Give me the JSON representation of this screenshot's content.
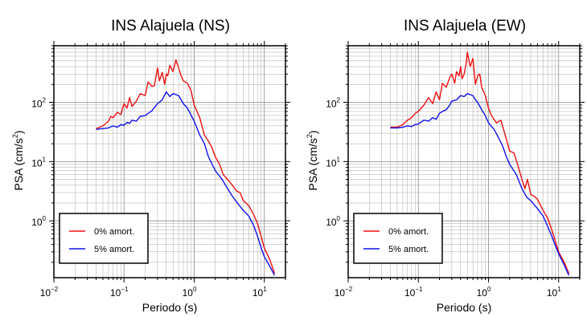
{
  "chart_data": [
    {
      "type": "line",
      "title": "INS Alajuela (NS)",
      "xlabel": "Periodo (s)",
      "ylabel_main": "PSA (cm/s",
      "ylabel_sup": "2",
      "ylabel_close": ")",
      "x_scale": "log",
      "y_scale": "log",
      "xlim": [
        0.01,
        20
      ],
      "ylim": [
        0.11,
        900
      ],
      "grid": true,
      "x_ticks": [
        {
          "base": "10",
          "exp": "−2"
        },
        {
          "base": "10",
          "exp": "−1"
        },
        {
          "base": "10",
          "exp": "0"
        },
        {
          "base": "10",
          "exp": "1"
        }
      ],
      "y_ticks": [
        {
          "base": "10",
          "exp": "0"
        },
        {
          "base": "10",
          "exp": "1"
        },
        {
          "base": "10",
          "exp": "2"
        }
      ],
      "legend_position": "bottom-left",
      "series": [
        {
          "name": "0% amort.",
          "color": "#ee1111",
          "x": [
            0.04,
            0.05,
            0.06,
            0.065,
            0.07,
            0.08,
            0.09,
            0.1,
            0.11,
            0.12,
            0.13,
            0.15,
            0.17,
            0.2,
            0.22,
            0.25,
            0.27,
            0.3,
            0.32,
            0.35,
            0.38,
            0.4,
            0.42,
            0.45,
            0.5,
            0.55,
            0.6,
            0.65,
            0.7,
            0.8,
            0.9,
            1.0,
            1.2,
            1.4,
            1.6,
            1.8,
            2.0,
            2.3,
            2.6,
            3.0,
            3.5,
            4.0,
            4.5,
            5.0,
            6.0,
            7.0,
            8.0,
            9.0,
            10.0,
            12.0,
            14.0
          ],
          "y": [
            36,
            40,
            48,
            58,
            55,
            68,
            62,
            95,
            80,
            120,
            85,
            105,
            140,
            130,
            220,
            185,
            190,
            380,
            230,
            320,
            200,
            300,
            280,
            420,
            330,
            520,
            380,
            280,
            230,
            210,
            160,
            90,
            55,
            28,
            22,
            17,
            12,
            9,
            6,
            5,
            4,
            3.2,
            3.0,
            2.2,
            1.8,
            1.3,
            0.9,
            0.55,
            0.35,
            0.22,
            0.13
          ]
        },
        {
          "name": "5% amort.",
          "color": "#1111ee",
          "x": [
            0.04,
            0.05,
            0.06,
            0.07,
            0.08,
            0.09,
            0.1,
            0.11,
            0.12,
            0.13,
            0.15,
            0.17,
            0.2,
            0.22,
            0.25,
            0.3,
            0.35,
            0.4,
            0.45,
            0.5,
            0.55,
            0.6,
            0.7,
            0.8,
            1.0,
            1.2,
            1.4,
            1.6,
            1.8,
            2.0,
            2.5,
            3.0,
            3.5,
            4.0,
            5.0,
            6.0,
            7.0,
            8.0,
            9.0,
            10.0,
            12.0,
            14.0
          ],
          "y": [
            35,
            36,
            37,
            40,
            38,
            42,
            41,
            46,
            44,
            50,
            48,
            58,
            60,
            65,
            72,
            95,
            110,
            150,
            125,
            140,
            135,
            130,
            95,
            80,
            48,
            28,
            20,
            12,
            9,
            7,
            5,
            3.5,
            2.6,
            2.1,
            1.5,
            1.2,
            0.85,
            0.55,
            0.35,
            0.25,
            0.17,
            0.12
          ]
        }
      ]
    },
    {
      "type": "line",
      "title": "INS Alajuela (EW)",
      "xlabel": "Periodo (s)",
      "ylabel_main": "PSA (cm/s",
      "ylabel_sup": "2",
      "ylabel_close": ")",
      "x_scale": "log",
      "y_scale": "log",
      "xlim": [
        0.01,
        20
      ],
      "ylim": [
        0.11,
        900
      ],
      "grid": true,
      "x_ticks": [
        {
          "base": "10",
          "exp": "−2"
        },
        {
          "base": "10",
          "exp": "−1"
        },
        {
          "base": "10",
          "exp": "0"
        },
        {
          "base": "10",
          "exp": "1"
        }
      ],
      "y_ticks": [
        {
          "base": "10",
          "exp": "0"
        },
        {
          "base": "10",
          "exp": "1"
        },
        {
          "base": "10",
          "exp": "2"
        }
      ],
      "legend_position": "bottom-left",
      "series": [
        {
          "name": "0% amort.",
          "color": "#ee1111",
          "x": [
            0.04,
            0.05,
            0.06,
            0.07,
            0.08,
            0.09,
            0.1,
            0.11,
            0.12,
            0.14,
            0.16,
            0.18,
            0.2,
            0.22,
            0.25,
            0.28,
            0.3,
            0.33,
            0.35,
            0.38,
            0.4,
            0.42,
            0.45,
            0.48,
            0.5,
            0.55,
            0.6,
            0.65,
            0.7,
            0.75,
            0.8,
            0.9,
            1.0,
            1.1,
            1.3,
            1.5,
            1.7,
            2.0,
            2.3,
            2.6,
            3.0,
            3.3,
            3.6,
            4.0,
            4.5,
            5.0,
            6.0,
            7.0,
            8.0,
            9.0,
            10.0,
            12.0,
            14.0
          ],
          "y": [
            38,
            38,
            42,
            50,
            55,
            65,
            70,
            80,
            90,
            120,
            95,
            150,
            110,
            210,
            180,
            260,
            300,
            210,
            330,
            280,
            400,
            250,
            300,
            450,
            700,
            400,
            550,
            200,
            280,
            300,
            180,
            130,
            80,
            60,
            45,
            50,
            30,
            15,
            14,
            9,
            5,
            3.5,
            5.0,
            2.8,
            2.6,
            2.3,
            1.5,
            1.1,
            0.7,
            0.45,
            0.3,
            0.2,
            0.13
          ]
        },
        {
          "name": "5% amort.",
          "color": "#1111ee",
          "x": [
            0.04,
            0.05,
            0.06,
            0.07,
            0.08,
            0.09,
            0.1,
            0.12,
            0.14,
            0.16,
            0.18,
            0.2,
            0.22,
            0.25,
            0.28,
            0.3,
            0.35,
            0.4,
            0.45,
            0.5,
            0.55,
            0.6,
            0.65,
            0.7,
            0.8,
            0.9,
            1.0,
            1.2,
            1.4,
            1.6,
            1.8,
            2.0,
            2.5,
            3.0,
            3.5,
            4.0,
            5.0,
            6.0,
            7.0,
            8.0,
            9.0,
            10.0,
            12.0,
            14.0
          ],
          "y": [
            37,
            37,
            38,
            40,
            39,
            42,
            43,
            50,
            48,
            55,
            52,
            65,
            70,
            75,
            90,
            105,
            110,
            130,
            125,
            140,
            135,
            130,
            110,
            100,
            75,
            60,
            45,
            35,
            25,
            18,
            12,
            9,
            6,
            3.5,
            2.5,
            2.2,
            1.6,
            1.2,
            0.8,
            0.55,
            0.38,
            0.28,
            0.18,
            0.12
          ]
        }
      ]
    }
  ]
}
